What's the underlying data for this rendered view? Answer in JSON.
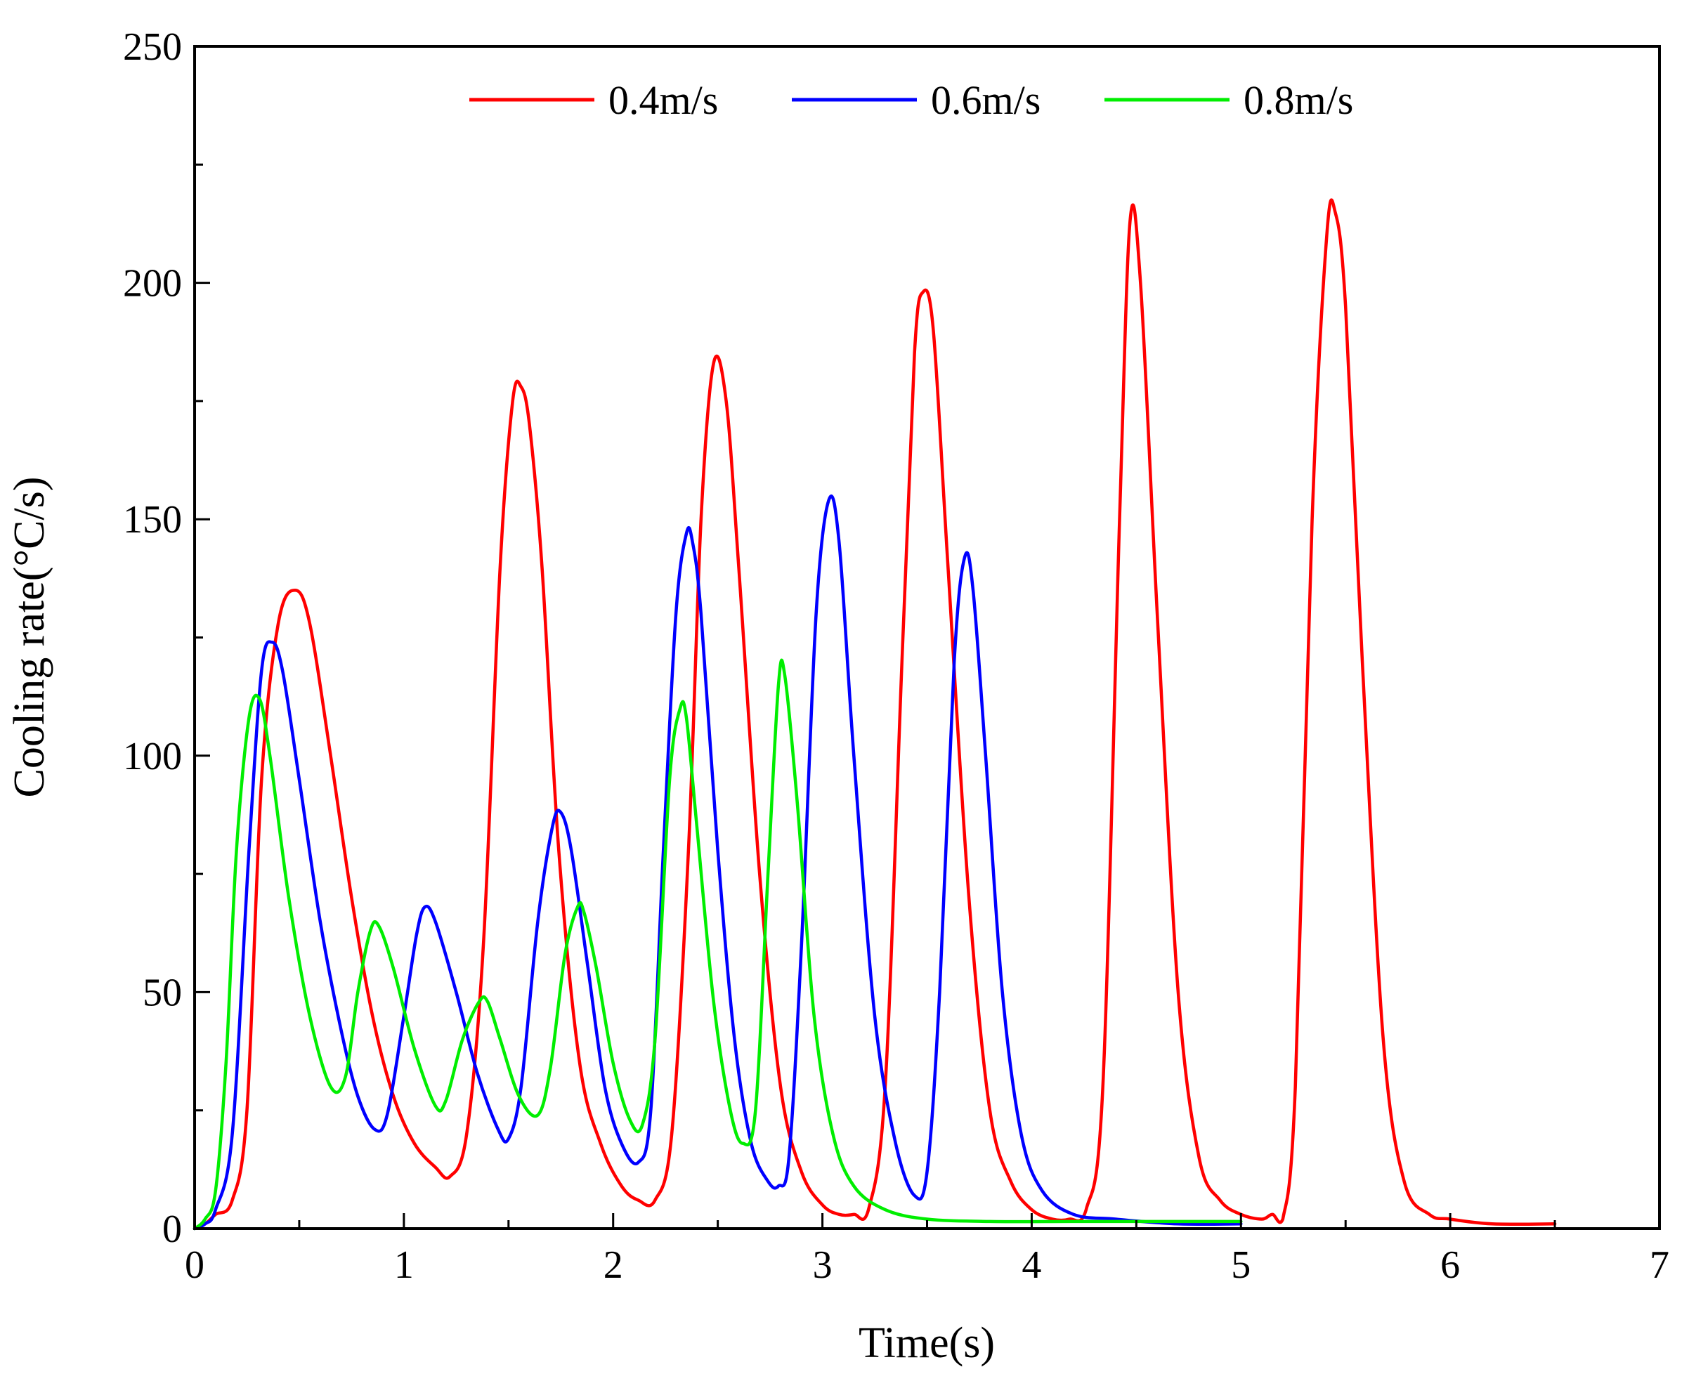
{
  "chart_data": {
    "type": "line",
    "title": "",
    "xlabel": "Time(s)",
    "ylabel": "Cooling rate(°C/s)",
    "xlim": [
      0,
      7
    ],
    "ylim": [
      0,
      250
    ],
    "xticks": [
      0,
      1,
      2,
      3,
      4,
      5,
      6,
      7
    ],
    "yticks": [
      0,
      50,
      100,
      150,
      200,
      250
    ],
    "xtick_labels": [
      "0",
      "1",
      "2",
      "3",
      "4",
      "5",
      "6",
      "7"
    ],
    "ytick_labels": [
      "0",
      "50",
      "100",
      "150",
      "200",
      "250"
    ],
    "grid": false,
    "legend_position": "top",
    "series": [
      {
        "name": "0.4m/s",
        "color": "#ff0000",
        "x": [
          0,
          0.05,
          0.1,
          0.18,
          0.25,
          0.32,
          0.4,
          0.48,
          0.55,
          0.65,
          0.75,
          0.85,
          0.95,
          1.05,
          1.15,
          1.22,
          1.3,
          1.38,
          1.46,
          1.52,
          1.56,
          1.6,
          1.66,
          1.74,
          1.84,
          1.94,
          2.04,
          2.12,
          2.2,
          2.28,
          2.36,
          2.42,
          2.48,
          2.54,
          2.6,
          2.7,
          2.8,
          2.9,
          3.0,
          3.08,
          3.15,
          3.22,
          3.3,
          3.38,
          3.44,
          3.48,
          3.53,
          3.6,
          3.7,
          3.8,
          3.9,
          4.0,
          4.1,
          4.18,
          4.26,
          4.34,
          4.42,
          4.47,
          4.52,
          4.6,
          4.7,
          4.8,
          4.9,
          5.0,
          5.1,
          5.15,
          5.2,
          5.26,
          5.34,
          5.41,
          5.45,
          5.5,
          5.58,
          5.68,
          5.78,
          5.9,
          6.0,
          6.2,
          6.5
        ],
        "y": [
          0,
          1,
          3,
          6,
          25,
          95,
          128,
          135,
          128,
          100,
          70,
          45,
          28,
          18,
          13,
          11,
          20,
          60,
          140,
          175,
          178,
          170,
          140,
          80,
          35,
          18,
          9,
          6,
          6,
          20,
          80,
          150,
          183,
          175,
          140,
          75,
          30,
          12,
          5,
          3,
          3,
          4,
          30,
          120,
          185,
          198,
          190,
          140,
          70,
          25,
          10,
          4,
          2,
          2,
          4,
          30,
          150,
          213,
          200,
          130,
          50,
          15,
          6,
          3,
          2,
          3,
          2,
          30,
          150,
          210,
          215,
          195,
          120,
          40,
          10,
          3,
          2,
          1,
          1
        ]
      },
      {
        "name": "0.6m/s",
        "color": "#0000ff",
        "x": [
          0,
          0.05,
          0.1,
          0.18,
          0.26,
          0.32,
          0.37,
          0.42,
          0.5,
          0.6,
          0.7,
          0.78,
          0.86,
          0.92,
          1.0,
          1.06,
          1.1,
          1.15,
          1.25,
          1.35,
          1.45,
          1.5,
          1.56,
          1.64,
          1.71,
          1.75,
          1.8,
          1.88,
          1.96,
          2.04,
          2.12,
          2.18,
          2.24,
          2.3,
          2.35,
          2.38,
          2.42,
          2.5,
          2.58,
          2.66,
          2.74,
          2.79,
          2.84,
          2.9,
          2.97,
          3.03,
          3.08,
          3.15,
          3.25,
          3.35,
          3.44,
          3.5,
          3.56,
          3.63,
          3.68,
          3.72,
          3.78,
          3.86,
          3.95,
          4.05,
          4.2,
          4.4,
          4.7,
          5.0
        ],
        "y": [
          0,
          1,
          4,
          20,
          80,
          118,
          124,
          118,
          95,
          65,
          42,
          28,
          21,
          24,
          45,
          62,
          68,
          65,
          50,
          33,
          21,
          19,
          30,
          65,
          85,
          88,
          80,
          55,
          30,
          18,
          14,
          25,
          80,
          130,
          147,
          145,
          130,
          80,
          40,
          18,
          10,
          9,
          15,
          60,
          130,
          154,
          145,
          100,
          45,
          18,
          7,
          12,
          50,
          120,
          142,
          135,
          100,
          50,
          20,
          8,
          3,
          2,
          1,
          1
        ]
      },
      {
        "name": "0.8m/s",
        "color": "#00ee00",
        "x": [
          0,
          0.05,
          0.1,
          0.15,
          0.2,
          0.26,
          0.31,
          0.36,
          0.45,
          0.55,
          0.65,
          0.72,
          0.78,
          0.84,
          0.88,
          0.95,
          1.05,
          1.15,
          1.2,
          1.28,
          1.36,
          1.4,
          1.46,
          1.55,
          1.64,
          1.7,
          1.77,
          1.83,
          1.86,
          1.92,
          2.0,
          2.08,
          2.14,
          2.2,
          2.27,
          2.32,
          2.35,
          2.4,
          2.48,
          2.56,
          2.62,
          2.68,
          2.74,
          2.79,
          2.82,
          2.88,
          2.96,
          3.05,
          3.15,
          3.3,
          3.5,
          3.8,
          4.2,
          4.6,
          5.0
        ],
        "y": [
          0,
          2,
          8,
          35,
          80,
          108,
          112,
          100,
          70,
          45,
          30,
          32,
          50,
          63,
          64,
          55,
          38,
          26,
          27,
          40,
          48,
          48,
          40,
          28,
          24,
          34,
          58,
          68,
          67,
          55,
          35,
          23,
          22,
          40,
          95,
          110,
          108,
          85,
          48,
          25,
          18,
          25,
          75,
          115,
          117,
          90,
          45,
          20,
          9,
          4,
          2,
          1.5,
          1.5,
          1.5,
          1.5
        ]
      }
    ]
  }
}
